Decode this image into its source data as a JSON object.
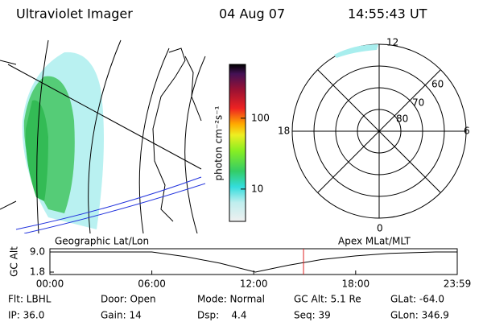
{
  "header": {
    "title": "Ultraviolet Imager",
    "date": "04 Aug 07",
    "time": "14:55:43 UT"
  },
  "colorbar": {
    "label": "photon cm⁻²s⁻¹",
    "scale": "log",
    "clim": [
      3.5,
      575
    ],
    "ticks": [
      10,
      100
    ]
  },
  "polar": {
    "mlt_labels": [
      "12",
      "18",
      "6",
      "0"
    ],
    "lat_labels": [
      "60",
      "70",
      "80"
    ]
  },
  "chart_data": {
    "type": "line",
    "left_label": "Geographic Lat/Lon",
    "right_label": "Apex MLat/MLT",
    "y_label": "GC Alt",
    "x": [
      0,
      6,
      8,
      10,
      12.1,
      14,
      16,
      18,
      20,
      22.7,
      23.98
    ],
    "series": [
      {
        "color": "#000000",
        "values": [
          9.0,
          9.0,
          7.3,
          5.0,
          1.8,
          4.2,
          6.3,
          7.6,
          8.5,
          9.0,
          9.0
        ]
      }
    ],
    "marker_x": 14.93,
    "marker_color": "#e02020",
    "xlim": [
      0,
      23.98
    ],
    "xticks": [
      {
        "value": 0,
        "label": "00:00"
      },
      {
        "value": 6,
        "label": "06:00"
      },
      {
        "value": 12,
        "label": "12:00"
      },
      {
        "value": 18,
        "label": "18:00"
      },
      {
        "value": 23.98,
        "label": "23:59"
      }
    ],
    "ylim": [
      1.8,
      9.0
    ],
    "yticks": [
      1.8,
      {
        "value": 9.0,
        "label": "9.0"
      }
    ]
  },
  "footer": {
    "rows": [
      [
        "Flt: LBHL",
        "Door: Open",
        "Mode: Normal",
        "GC Alt: 5.1 Re",
        "GLat: -64.0"
      ],
      [
        "IP: 36.0",
        "Gain: 14",
        "Dsp:    4.4",
        "Seq: 39",
        "GLon: 346.9"
      ]
    ]
  }
}
